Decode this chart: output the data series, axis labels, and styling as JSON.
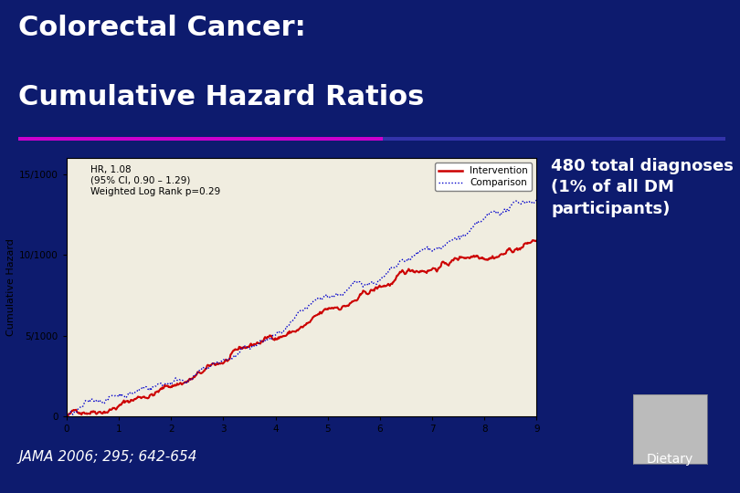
{
  "bg_color": "#0d1b6e",
  "title_line1": "Colorectal Cancer:",
  "title_line2": "Cumulative Hazard Ratios",
  "title_color": "#ffffff",
  "title_fontsize": 22,
  "divider_color_left": "#cc00cc",
  "divider_color_right": "#3333aa",
  "annotation_text": "480 total diagnoses\n(1% of all DM\nparticipants)",
  "annotation_color": "#ffffff",
  "annotation_fontsize": 13,
  "jama_text": "JAMA 2006; 295; 642-654",
  "jama_color": "#ffffff",
  "jama_fontsize": 11,
  "dietary_text": "Dietary",
  "dietary_color": "#ffffff",
  "dietary_fontsize": 10,
  "plot_bg": "#f0ede0",
  "intervention_color": "#cc0000",
  "comparison_color": "#0000cc",
  "hr_annotation": "HR, 1.08\n(95% CI, 0.90 – 1.29)\nWeighted Log Rank p=0.29",
  "ylabel": "Cumulative Hazard",
  "ytick_labels": [
    "0",
    "5/1000",
    "10/1000",
    "15/1000"
  ],
  "ytick_vals": [
    0,
    0.005,
    0.01,
    0.015
  ],
  "xtick_vals": [
    0,
    1,
    2,
    3,
    4,
    5,
    6,
    7,
    8,
    9
  ],
  "xlim": [
    0,
    9
  ],
  "ylim": [
    0,
    0.016
  ],
  "seed": 42
}
